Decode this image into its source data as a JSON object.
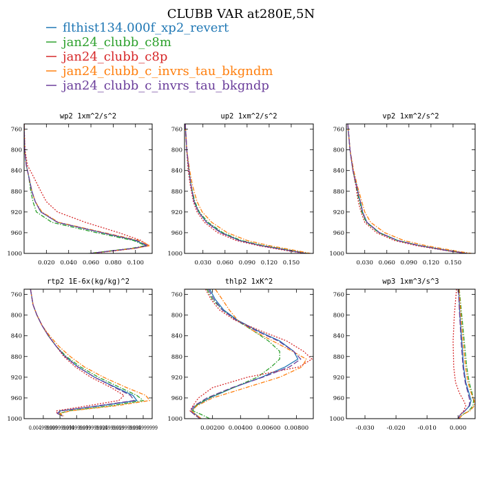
{
  "figure_title": "CLUBB VAR at280E,5N",
  "legend": [
    {
      "label": "flthist134.000f_xp2_revert",
      "color": "#1f77b4",
      "dash": "solid"
    },
    {
      "label": "jan24_clubb_c8m",
      "color": "#2ca02c",
      "dash": "dashdot"
    },
    {
      "label": "jan24_clubb_c8p",
      "color": "#d62728",
      "dash": "dotted"
    },
    {
      "label": "jan24_clubb_c_invrs_tau_bkgndm",
      "color": "#ff7f0e",
      "dash": "dashdot"
    },
    {
      "label": "jan24_clubb_c_invrs_tau_bkgndp",
      "color": "#6a3d9a",
      "dash": "longdash"
    }
  ],
  "chart_data": [
    {
      "type": "line",
      "title": "wp2  1xm^2/s^2",
      "xlim": [
        0.0,
        0.115
      ],
      "ylim": [
        1000,
        750
      ],
      "xticks": [
        0.02,
        0.04,
        0.06,
        0.08,
        0.1
      ],
      "xtick_labels": [
        "0.020",
        "0.040",
        "0.060",
        "0.080",
        "0.100"
      ],
      "yticks": [
        760,
        800,
        840,
        880,
        920,
        960,
        1000
      ],
      "y": [
        750,
        800,
        830,
        850,
        880,
        900,
        920,
        940,
        960,
        975,
        985,
        990,
        995,
        1000
      ],
      "series": [
        {
          "x": [
            0.0,
            0.0005,
            0.002,
            0.004,
            0.007,
            0.01,
            0.015,
            0.03,
            0.07,
            0.1,
            0.11,
            0.1,
            0.08,
            0.06
          ]
        },
        {
          "x": [
            0.0,
            0.0005,
            0.002,
            0.004,
            0.006,
            0.008,
            0.011,
            0.025,
            0.065,
            0.098,
            0.109,
            0.097,
            0.078,
            0.058
          ]
        },
        {
          "x": [
            0.0,
            0.0008,
            0.003,
            0.008,
            0.015,
            0.02,
            0.03,
            0.055,
            0.085,
            0.105,
            0.112,
            0.1,
            0.082,
            0.062
          ]
        },
        {
          "x": [
            0.0,
            0.0005,
            0.002,
            0.004,
            0.007,
            0.01,
            0.016,
            0.031,
            0.072,
            0.103,
            0.113,
            0.1,
            0.08,
            0.06
          ]
        },
        {
          "x": [
            0.0,
            0.0005,
            0.002,
            0.004,
            0.007,
            0.01,
            0.015,
            0.03,
            0.07,
            0.101,
            0.111,
            0.099,
            0.079,
            0.059
          ]
        }
      ]
    },
    {
      "type": "line",
      "title": "up2  1xm^2/s^2",
      "xlim": [
        0.005,
        0.18
      ],
      "ylim": [
        1000,
        750
      ],
      "xticks": [
        0.03,
        0.06,
        0.09,
        0.12,
        0.15
      ],
      "xtick_labels": [
        "0.030",
        "0.060",
        "0.090",
        "0.120",
        "0.150"
      ],
      "yticks": [
        760,
        800,
        840,
        880,
        920,
        960,
        1000
      ],
      "y": [
        750,
        800,
        840,
        870,
        900,
        920,
        940,
        960,
        975,
        985,
        995,
        1000
      ],
      "series": [
        {
          "x": [
            0.006,
            0.008,
            0.011,
            0.014,
            0.018,
            0.024,
            0.035,
            0.055,
            0.08,
            0.11,
            0.15,
            0.17
          ]
        },
        {
          "x": [
            0.006,
            0.008,
            0.011,
            0.014,
            0.019,
            0.025,
            0.037,
            0.057,
            0.082,
            0.112,
            0.152,
            0.172
          ]
        },
        {
          "x": [
            0.006,
            0.008,
            0.01,
            0.013,
            0.017,
            0.022,
            0.032,
            0.05,
            0.075,
            0.105,
            0.145,
            0.168
          ]
        },
        {
          "x": [
            0.006,
            0.008,
            0.012,
            0.016,
            0.022,
            0.029,
            0.042,
            0.063,
            0.09,
            0.12,
            0.158,
            0.176
          ]
        },
        {
          "x": [
            0.006,
            0.008,
            0.011,
            0.014,
            0.018,
            0.024,
            0.035,
            0.054,
            0.079,
            0.109,
            0.149,
            0.17
          ]
        }
      ]
    },
    {
      "type": "line",
      "title": "vp2  1xm^2/s^2",
      "xlim": [
        0.005,
        0.18
      ],
      "ylim": [
        1000,
        750
      ],
      "xticks": [
        0.03,
        0.06,
        0.09,
        0.12,
        0.15
      ],
      "xtick_labels": [
        "0.030",
        "0.060",
        "0.090",
        "0.120",
        "0.150"
      ],
      "yticks": [
        760,
        800,
        840,
        880,
        920,
        960,
        1000
      ],
      "y": [
        750,
        800,
        840,
        870,
        890,
        905,
        920,
        940,
        960,
        975,
        985,
        995,
        1000
      ],
      "series": [
        {
          "x": [
            0.007,
            0.01,
            0.014,
            0.019,
            0.022,
            0.025,
            0.027,
            0.033,
            0.05,
            0.075,
            0.105,
            0.145,
            0.17
          ]
        },
        {
          "x": [
            0.007,
            0.01,
            0.014,
            0.018,
            0.021,
            0.024,
            0.026,
            0.032,
            0.049,
            0.074,
            0.104,
            0.144,
            0.169
          ]
        },
        {
          "x": [
            0.007,
            0.01,
            0.014,
            0.018,
            0.02,
            0.022,
            0.025,
            0.03,
            0.046,
            0.07,
            0.1,
            0.142,
            0.167
          ]
        },
        {
          "x": [
            0.007,
            0.01,
            0.015,
            0.02,
            0.024,
            0.027,
            0.03,
            0.038,
            0.057,
            0.083,
            0.113,
            0.152,
            0.175
          ]
        },
        {
          "x": [
            0.007,
            0.01,
            0.014,
            0.019,
            0.022,
            0.025,
            0.027,
            0.033,
            0.05,
            0.074,
            0.104,
            0.144,
            0.169
          ]
        }
      ]
    },
    {
      "type": "line",
      "title": "rtp2  1E-6x(kg/kg)^2",
      "xlim": [
        0.0,
        1.0
      ],
      "ylim": [
        1000,
        750
      ],
      "xticks": [
        0.15,
        0.28,
        0.41,
        0.54,
        0.67,
        0.8,
        0.93
      ],
      "xtick_labels": [
        "0.004999999",
        "0.009999999",
        "0.014999999",
        "0.019999999",
        "0.024999999",
        "0.029999999",
        "0.034999999"
      ],
      "xtick_run_on": true,
      "yticks": [
        760,
        800,
        840,
        880,
        920,
        960,
        1000
      ],
      "y": [
        750,
        780,
        800,
        820,
        840,
        860,
        880,
        900,
        920,
        940,
        955,
        965,
        975,
        985,
        990,
        995
      ],
      "series": [
        {
          "x": [
            0.05,
            0.07,
            0.1,
            0.14,
            0.19,
            0.25,
            0.32,
            0.42,
            0.55,
            0.72,
            0.85,
            0.88,
            0.6,
            0.28,
            0.26,
            0.3
          ]
        },
        {
          "x": [
            0.05,
            0.07,
            0.1,
            0.14,
            0.19,
            0.25,
            0.33,
            0.44,
            0.58,
            0.75,
            0.88,
            0.93,
            0.68,
            0.35,
            0.27,
            0.3
          ]
        },
        {
          "x": [
            0.05,
            0.07,
            0.1,
            0.14,
            0.19,
            0.25,
            0.31,
            0.4,
            0.52,
            0.68,
            0.78,
            0.74,
            0.5,
            0.25,
            0.26,
            0.3
          ]
        },
        {
          "x": [
            0.05,
            0.07,
            0.1,
            0.14,
            0.2,
            0.27,
            0.36,
            0.47,
            0.62,
            0.8,
            0.95,
            0.98,
            0.72,
            0.36,
            0.28,
            0.31
          ]
        },
        {
          "x": [
            0.05,
            0.07,
            0.1,
            0.14,
            0.19,
            0.25,
            0.32,
            0.42,
            0.55,
            0.71,
            0.83,
            0.86,
            0.58,
            0.29,
            0.26,
            0.3
          ]
        }
      ]
    },
    {
      "type": "line",
      "title": "thlp2  1xK^2",
      "xlim": [
        0.0,
        0.0092
      ],
      "ylim": [
        1000,
        750
      ],
      "xticks": [
        0.002,
        0.004,
        0.006,
        0.008
      ],
      "xtick_labels": [
        "0.00200",
        "0.00400",
        "0.00600",
        "0.00800"
      ],
      "yticks": [
        760,
        800,
        840,
        880,
        920,
        960,
        1000
      ],
      "y": [
        750,
        770,
        790,
        810,
        830,
        850,
        870,
        885,
        900,
        920,
        940,
        960,
        975,
        985,
        992,
        1000
      ],
      "series": [
        {
          "x": [
            0.0018,
            0.0022,
            0.0028,
            0.0038,
            0.0052,
            0.0068,
            0.0078,
            0.0081,
            0.0072,
            0.0055,
            0.0035,
            0.0018,
            0.0008,
            0.0005,
            0.0008,
            0.0012
          ]
        },
        {
          "x": [
            0.0016,
            0.002,
            0.0027,
            0.0037,
            0.0049,
            0.006,
            0.0068,
            0.0068,
            0.0062,
            0.0052,
            0.0035,
            0.0017,
            0.0008,
            0.0006,
            0.0012,
            0.0018
          ]
        },
        {
          "x": [
            0.0015,
            0.0019,
            0.0025,
            0.0036,
            0.0054,
            0.0073,
            0.0085,
            0.0091,
            0.0082,
            0.0045,
            0.002,
            0.001,
            0.0006,
            0.0004,
            0.0007,
            0.0011
          ]
        },
        {
          "x": [
            0.0022,
            0.0027,
            0.0032,
            0.0038,
            0.0049,
            0.0063,
            0.0077,
            0.0087,
            0.0084,
            0.0068,
            0.0044,
            0.002,
            0.0009,
            0.0005,
            0.0008,
            0.0012
          ]
        },
        {
          "x": [
            0.0017,
            0.0021,
            0.0027,
            0.0037,
            0.0051,
            0.0067,
            0.0078,
            0.0083,
            0.0075,
            0.0056,
            0.0034,
            0.0016,
            0.0007,
            0.0004,
            0.0007,
            0.0011
          ]
        }
      ]
    },
    {
      "type": "line",
      "title": "wp3  1xm^3/s^3",
      "xlim": [
        -0.036,
        0.0055
      ],
      "ylim": [
        1000,
        750
      ],
      "xticks": [
        -0.03,
        -0.02,
        -0.01,
        0.0
      ],
      "xtick_labels": [
        "-0.030",
        "-0.020",
        "-0.010",
        "0.000"
      ],
      "yticks": [
        760,
        800,
        840,
        880,
        920,
        960,
        1000
      ],
      "y": [
        750,
        800,
        850,
        900,
        930,
        950,
        965,
        975,
        985,
        992,
        1000
      ],
      "series": [
        {
          "x": [
            0.0002,
            0.0006,
            0.0012,
            0.0018,
            0.0025,
            0.0035,
            0.0042,
            0.0038,
            0.0022,
            0.0008,
            0.0
          ]
        },
        {
          "x": [
            0.0004,
            0.0012,
            0.002,
            0.0028,
            0.0036,
            0.0045,
            0.005,
            0.0048,
            0.0035,
            0.0015,
            0.0003
          ]
        },
        {
          "x": [
            -0.0005,
            -0.0012,
            -0.0016,
            -0.0014,
            -0.0008,
            0.0004,
            0.0018,
            0.0025,
            0.0018,
            0.0008,
            0.0
          ]
        },
        {
          "x": [
            0.0003,
            0.0009,
            0.0016,
            0.0024,
            0.0032,
            0.0042,
            0.0052,
            0.0053,
            0.0038,
            0.0016,
            0.0002
          ]
        },
        {
          "x": [
            0.0001,
            0.0005,
            0.001,
            0.0016,
            0.0023,
            0.0032,
            0.0038,
            0.0036,
            0.0022,
            0.0008,
            0.0
          ]
        }
      ]
    }
  ]
}
